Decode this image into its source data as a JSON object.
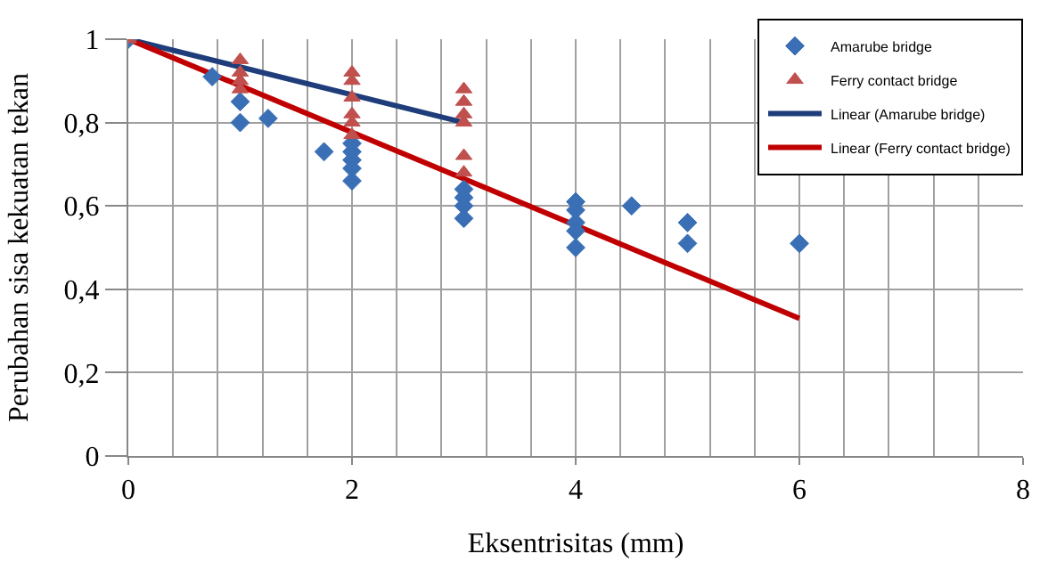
{
  "chart_data": {
    "type": "scatter",
    "xlabel": "Eksentrisitas (mm)",
    "ylabel": "Perubahan sisa kekuatan tekan",
    "series": [
      {
        "name": "Amarube bridge",
        "marker": "diamond",
        "color": "#3a6fb5",
        "x": [
          0,
          0.75,
          1,
          1,
          1.25,
          1.75,
          2,
          2,
          2,
          2,
          2,
          3,
          3,
          3,
          3,
          4,
          4,
          4,
          4,
          4,
          4.5,
          5,
          5,
          6
        ],
        "values": [
          1.0,
          0.91,
          0.85,
          0.8,
          0.81,
          0.73,
          0.75,
          0.73,
          0.71,
          0.69,
          0.66,
          0.64,
          0.62,
          0.6,
          0.57,
          0.61,
          0.59,
          0.56,
          0.54,
          0.5,
          0.6,
          0.56,
          0.51,
          0.51
        ]
      },
      {
        "name": "Ferry contact bridge",
        "marker": "triangle",
        "color": "#c0504d",
        "x": [
          0,
          1,
          1,
          1,
          1,
          2,
          2,
          2,
          2,
          2,
          2,
          3,
          3,
          3,
          3,
          3,
          3
        ],
        "values": [
          1.0,
          0.95,
          0.92,
          0.9,
          0.88,
          0.92,
          0.9,
          0.86,
          0.82,
          0.8,
          0.77,
          0.88,
          0.85,
          0.82,
          0.8,
          0.72,
          0.68
        ]
      },
      {
        "name": "Linear (Amarube bridge)",
        "type": "line",
        "marker": "none",
        "color": "#1f3d7a",
        "x": [
          0,
          3
        ],
        "values": [
          1.0,
          0.8
        ]
      },
      {
        "name": "Linear (Ferry contact bridge)",
        "type": "line",
        "marker": "none",
        "color": "#c00000",
        "x": [
          0,
          6
        ],
        "values": [
          1.0,
          0.33
        ]
      }
    ],
    "xlim": [
      0,
      8
    ],
    "xticks": [
      0,
      2,
      4,
      6,
      8
    ],
    "ylim": [
      0,
      1
    ],
    "yticks": [
      0,
      {
        "value": 0.2,
        "label": "0,2"
      },
      {
        "value": 0.4,
        "label": "0,4"
      },
      {
        "value": 0.6,
        "label": "0,6"
      },
      {
        "value": 0.8,
        "label": "0,8"
      },
      1
    ],
    "grid": true,
    "legend": "top right"
  }
}
